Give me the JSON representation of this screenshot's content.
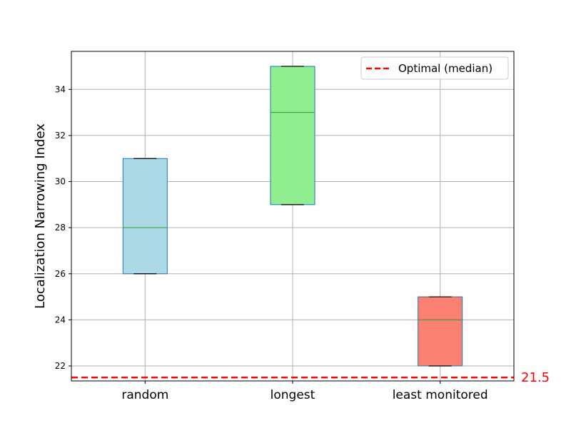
{
  "chart_data": {
    "type": "box",
    "categories": [
      "random",
      "longest",
      "least monitored"
    ],
    "boxes": [
      {
        "category": "random",
        "whisker_low": 26,
        "q1": 26,
        "median": 28,
        "q3": 31,
        "whisker_high": 31,
        "color": "#add8e6"
      },
      {
        "category": "longest",
        "whisker_low": 29,
        "q1": 29,
        "median": 33,
        "q3": 35,
        "whisker_high": 35,
        "color": "#90ee90"
      },
      {
        "category": "least monitored",
        "whisker_low": 22,
        "q1": 22,
        "median": 24,
        "q3": 25,
        "whisker_high": 25,
        "color": "#fa8072"
      }
    ],
    "xlabel": "",
    "ylabel": "Localization Narrowing Index",
    "ylim": [
      21.35,
      35.65
    ],
    "yticks": [
      22,
      24,
      26,
      28,
      30,
      32,
      34
    ],
    "grid": true,
    "box_edge_color": "#1f77b4",
    "median_color": "#2ca02c",
    "reference_line": {
      "value": 21.5,
      "label": "21.5",
      "legend": "Optimal (median)",
      "color": "#ff0000",
      "style": "dashed"
    },
    "legend_position": "top-right"
  }
}
